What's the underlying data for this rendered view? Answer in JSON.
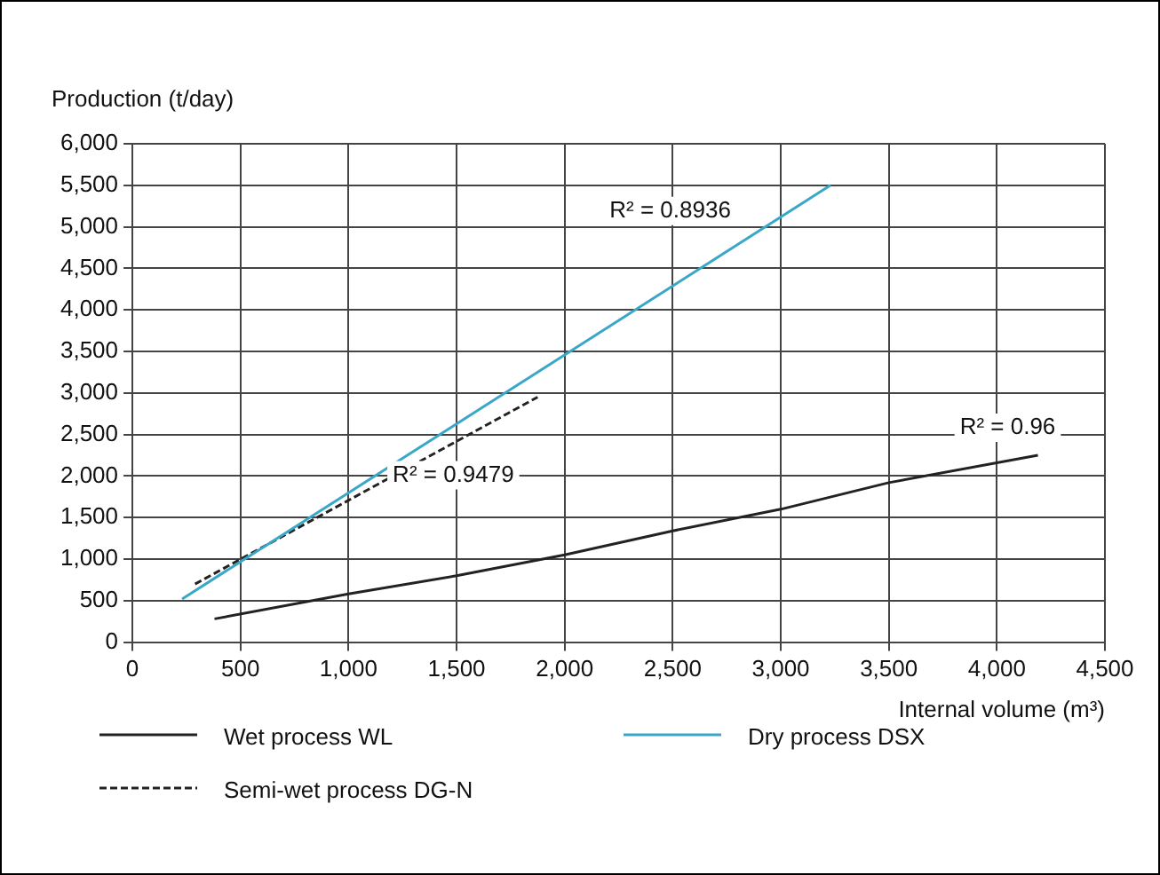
{
  "chart_data": {
    "type": "line",
    "xlabel": "Internal volume (m³)",
    "ylabel": "Production (t/day)",
    "xlim": [
      0,
      4500
    ],
    "ylim": [
      0,
      6000
    ],
    "xticks": [
      0,
      500,
      {
        "value": 1000,
        "label": "1,000"
      },
      {
        "value": 1500,
        "label": "1,500"
      },
      {
        "value": 2000,
        "label": "2,000"
      },
      {
        "value": 2500,
        "label": "2,500"
      },
      {
        "value": 3000,
        "label": "3,000"
      },
      {
        "value": 3500,
        "label": "3,500"
      },
      {
        "value": 4000,
        "label": "4,000"
      },
      {
        "value": 4500,
        "label": "4,500"
      }
    ],
    "yticks": [
      0,
      500,
      {
        "value": 1000,
        "label": "1,000"
      },
      {
        "value": 1500,
        "label": "1,500"
      },
      {
        "value": 2000,
        "label": "2,000"
      },
      {
        "value": 2500,
        "label": "2,500"
      },
      {
        "value": 3000,
        "label": "3,000"
      },
      {
        "value": 3500,
        "label": "3,500"
      },
      {
        "value": 4000,
        "label": "4,000"
      },
      {
        "value": 4500,
        "label": "4,500"
      },
      {
        "value": 5000,
        "label": "5,000"
      },
      {
        "value": 5500,
        "label": "5,500"
      },
      {
        "value": 6000,
        "label": "6,000"
      }
    ],
    "series": [
      {
        "name": "Wet process WL",
        "color": "#222222",
        "line_style": "solid",
        "x": [
          380,
          1000,
          1500,
          2000,
          2500,
          3000,
          3500,
          4190
        ],
        "values": [
          280,
          580,
          800,
          1050,
          1340,
          1600,
          1920,
          2250
        ]
      },
      {
        "name": "Dry process DSX",
        "color": "#3aa7c8",
        "line_style": "solid",
        "x": [
          230,
          3230
        ],
        "values": [
          520,
          5500
        ]
      },
      {
        "name": "Semi-wet process DG-N",
        "color": "#222222",
        "line_style": "dashed",
        "x": [
          290,
          1875
        ],
        "values": [
          700,
          2950
        ]
      }
    ],
    "annotations": [
      "R² = 0.8936",
      "R² = 0.9479",
      "R² = 0.96"
    ],
    "grid": true,
    "legend": "bottom",
    "marker": "none"
  }
}
